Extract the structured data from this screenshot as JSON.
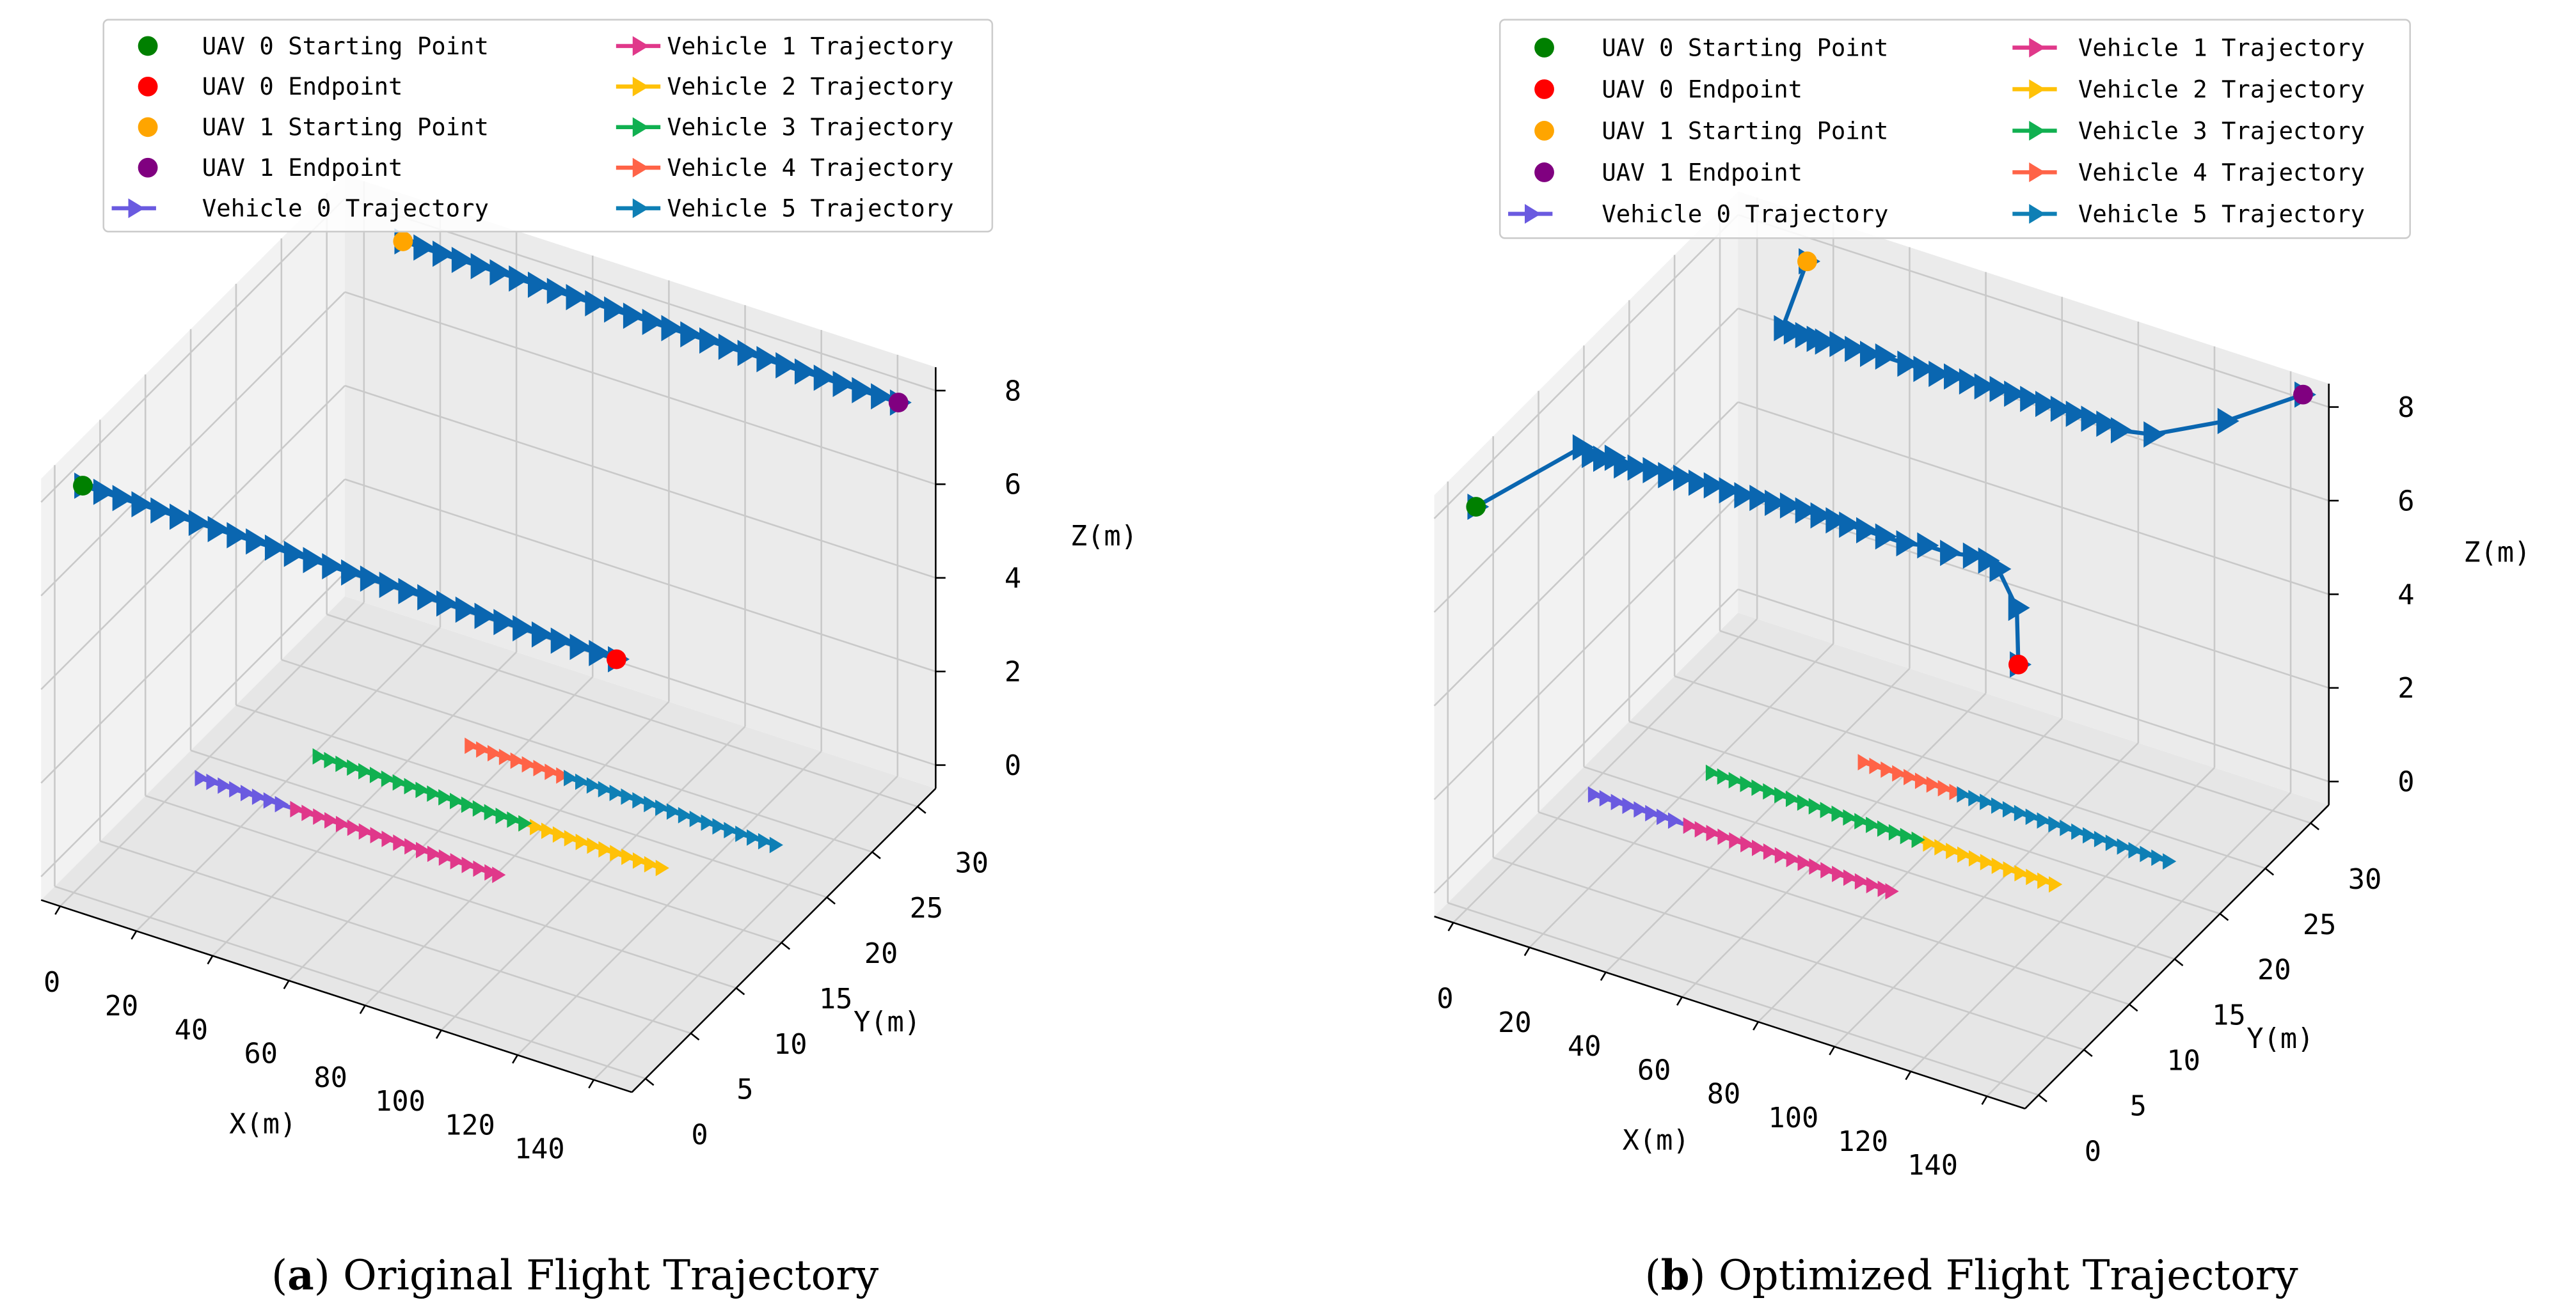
{
  "panels": [
    {
      "label": "a",
      "caption": "Original Flight Trajectory"
    },
    {
      "label": "b",
      "caption": "Optimized Flight Trajectory"
    }
  ],
  "legend": {
    "placement": "top",
    "entries": [
      {
        "label": "UAV 0 Starting Point",
        "color": "#008000",
        "kind": "point"
      },
      {
        "label": "UAV 0 Endpoint",
        "color": "#ff0000",
        "kind": "point"
      },
      {
        "label": "UAV 1 Starting Point",
        "color": "#ffa500",
        "kind": "point"
      },
      {
        "label": "UAV 1 Endpoint",
        "color": "#800080",
        "kind": "point"
      },
      {
        "label": "Vehicle 0 Trajectory",
        "color": "#6a5ae0",
        "kind": "line"
      },
      {
        "label": "Vehicle 1 Trajectory",
        "color": "#e0388a",
        "kind": "line"
      },
      {
        "label": "Vehicle 2 Trajectory",
        "color": "#ffc107",
        "kind": "line"
      },
      {
        "label": "Vehicle 3 Trajectory",
        "color": "#10b050",
        "kind": "line"
      },
      {
        "label": "Vehicle 4 Trajectory",
        "color": "#ff6347",
        "kind": "line"
      },
      {
        "label": "Vehicle 5 Trajectory",
        "color": "#0e7fb5",
        "kind": "line"
      }
    ]
  },
  "chart_data": [
    {
      "type": "line3d",
      "xlabel": "X(m)",
      "ylabel": "Y(m)",
      "zlabel": "Z(m)",
      "xticks": [
        0,
        20,
        40,
        60,
        80,
        100,
        120,
        140
      ],
      "yticks": [
        0,
        5,
        10,
        15,
        20,
        25,
        30
      ],
      "zticks": [
        0,
        2,
        4,
        6,
        8
      ],
      "xlim": [
        -5,
        150
      ],
      "ylim": [
        -1.5,
        32
      ],
      "zlim": [
        -0.5,
        8.5
      ],
      "grid": true,
      "uav_color": "#0a66b0",
      "uav_paths": [
        {
          "x": [
            0,
            5,
            10,
            15,
            20,
            25,
            30,
            35,
            40,
            45,
            50,
            55,
            60,
            65,
            70,
            75,
            80,
            85,
            90,
            95,
            100,
            105,
            110,
            115,
            120,
            125,
            130,
            135,
            140
          ],
          "y": 1,
          "z": 8
        },
        {
          "x": [
            15,
            20,
            25,
            30,
            35,
            40,
            45,
            50,
            55,
            60,
            65,
            70,
            75,
            80,
            85,
            90,
            95,
            100,
            105,
            110,
            115,
            120,
            125,
            130,
            135,
            140,
            145
          ],
          "y": 30,
          "z": 8
        }
      ],
      "points": [
        {
          "name": "UAV 0 Starting Point",
          "x": 0,
          "y": 1,
          "z": 8
        },
        {
          "name": "UAV 0 Endpoint",
          "x": 140,
          "y": 1,
          "z": 8
        },
        {
          "name": "UAV 1 Starting Point",
          "x": 15,
          "y": 30,
          "z": 8
        },
        {
          "name": "UAV 1 Endpoint",
          "x": 145,
          "y": 30,
          "z": 8
        }
      ],
      "series": [
        {
          "name": "Vehicle 0 Trajectory",
          "x": [
            7,
            10,
            13,
            16,
            19,
            22,
            25,
            28,
            32
          ],
          "y": 11,
          "z": 0
        },
        {
          "name": "Vehicle 1 Trajectory",
          "x": [
            32,
            35,
            38,
            41,
            44,
            47,
            50,
            53,
            56,
            59,
            62,
            65,
            68,
            71,
            74,
            77,
            80,
            83,
            85
          ],
          "y": 11,
          "z": 0
        },
        {
          "name": "Vehicle 2 Trajectory",
          "x": [
            80,
            83,
            86,
            89,
            92,
            95,
            98,
            101,
            104,
            107,
            110,
            113,
            116
          ],
          "y": 16,
          "z": 0
        },
        {
          "name": "Vehicle 3 Trajectory",
          "x": [
            26,
            29,
            32,
            35,
            38,
            41,
            44,
            47,
            50,
            53,
            56,
            59,
            62,
            65,
            68,
            71,
            74,
            77,
            80
          ],
          "y": 16,
          "z": 0
        },
        {
          "name": "Vehicle 4 Trajectory",
          "x": [
            54,
            57,
            60,
            63,
            66,
            69,
            72,
            75,
            78,
            80
          ],
          "y": 21,
          "z": 0
        },
        {
          "name": "Vehicle 5 Trajectory",
          "x": [
            80,
            83,
            86,
            89,
            92,
            95,
            98,
            101,
            104,
            107,
            110,
            113,
            116,
            119,
            122,
            125,
            128,
            131,
            134
          ],
          "y": 21,
          "z": 0
        }
      ]
    },
    {
      "type": "line3d",
      "xlabel": "X(m)",
      "ylabel": "Y(m)",
      "zlabel": "Z(m)",
      "xticks": [
        0,
        20,
        40,
        60,
        80,
        100,
        120,
        140
      ],
      "yticks": [
        0,
        5,
        10,
        15,
        20,
        25,
        30
      ],
      "zticks": [
        0,
        2,
        4,
        6,
        8
      ],
      "xlim": [
        -5,
        150
      ],
      "ylim": [
        -1.5,
        32
      ],
      "zlim": [
        -0.5,
        8.5
      ],
      "grid": true,
      "uav_color": "#0a66b0",
      "uav_paths": [
        {
          "x": [
            0,
            27.6,
            30,
            33,
            36,
            38.4,
            42,
            46,
            50,
            54,
            58,
            62,
            66,
            70,
            74,
            78,
            82,
            86,
            90,
            94,
            97.5,
            102,
            107,
            112.5,
            118,
            124,
            130,
            134,
            137,
            141.9,
            142.3
          ],
          "y": 1,
          "z": [
            7.9,
            9.9,
            9.8,
            9.8,
            9.9,
            9.8,
            9.85,
            9.9,
            9.9,
            9.95,
            9.95,
            10.0,
            10.0,
            10.0,
            10.05,
            10.05,
            10.1,
            10.1,
            10.1,
            10.1,
            10.1,
            10.1,
            10.1,
            10.1,
            10.2,
            10.2,
            10.3,
            10.3,
            10.2,
            9.5,
            8.3
          ]
        },
        {
          "x": [
            17.9,
            11.4,
            14,
            17,
            20,
            22.2,
            26,
            30,
            34,
            38,
            43.8,
            48,
            52,
            56,
            60,
            64,
            68,
            71.8,
            76,
            80,
            84,
            88,
            92,
            96,
            99.8,
            108.4,
            127.8,
            148
          ],
          "y": 30,
          "z": [
            8.0,
            6.4,
            6.4,
            6.4,
            6.4,
            6.4,
            6.45,
            6.45,
            6.45,
            6.5,
            6.5,
            6.5,
            6.5,
            6.55,
            6.55,
            6.55,
            6.6,
            6.6,
            6.6,
            6.6,
            6.6,
            6.6,
            6.6,
            6.6,
            6.56,
            6.7,
            7.5,
            8.6
          ]
        }
      ],
      "points": [
        {
          "name": "UAV 0 Starting Point",
          "x": 0,
          "y": 1,
          "z": 7.9
        },
        {
          "name": "UAV 0 Endpoint",
          "x": 142.3,
          "y": 1,
          "z": 8.3
        },
        {
          "name": "UAV 1 Starting Point",
          "x": 17.9,
          "y": 30,
          "z": 8.0
        },
        {
          "name": "UAV 1 Endpoint",
          "x": 148,
          "y": 30,
          "z": 8.6
        }
      ],
      "series": [
        {
          "name": "Vehicle 0 Trajectory",
          "x": [
            7,
            10,
            13,
            16,
            19,
            22,
            25,
            28,
            32
          ],
          "y": 11,
          "z": 0
        },
        {
          "name": "Vehicle 1 Trajectory",
          "x": [
            32,
            35,
            38,
            41,
            44,
            47,
            50,
            53,
            56,
            59,
            62,
            65,
            68,
            71,
            74,
            77,
            80,
            83,
            85
          ],
          "y": 11,
          "z": 0
        },
        {
          "name": "Vehicle 2 Trajectory",
          "x": [
            80,
            83,
            86,
            89,
            92,
            95,
            98,
            101,
            104,
            107,
            110,
            113,
            116
          ],
          "y": 16,
          "z": 0
        },
        {
          "name": "Vehicle 3 Trajectory",
          "x": [
            26,
            29,
            32,
            35,
            38,
            41,
            44,
            47,
            50,
            53,
            56,
            59,
            62,
            65,
            68,
            71,
            74,
            77,
            80
          ],
          "y": 16,
          "z": 0
        },
        {
          "name": "Vehicle 4 Trajectory",
          "x": [
            54,
            57,
            60,
            63,
            66,
            69,
            72,
            75,
            78,
            80
          ],
          "y": 21,
          "z": 0
        },
        {
          "name": "Vehicle 5 Trajectory",
          "x": [
            80,
            83,
            86,
            89,
            92,
            95,
            98,
            101,
            104,
            107,
            110,
            113,
            116,
            119,
            122,
            125,
            128,
            131,
            134
          ],
          "y": 21,
          "z": 0
        }
      ]
    }
  ]
}
